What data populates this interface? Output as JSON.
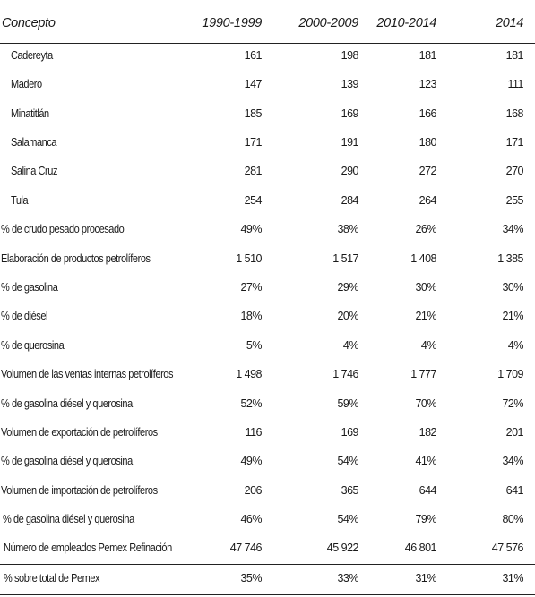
{
  "table": {
    "headers": {
      "concept": "Concepto",
      "col1": "1990-1999",
      "col2": "2000-2009",
      "col3": "2010-2014",
      "col4": "2014"
    },
    "rows": [
      {
        "label": "Cadereyta",
        "values": [
          "161",
          "198",
          "181",
          "181"
        ]
      },
      {
        "label": "Madero",
        "values": [
          "147",
          "139",
          "123",
          "111"
        ]
      },
      {
        "label": "Minatitlán",
        "values": [
          "185",
          "169",
          "166",
          "168"
        ]
      },
      {
        "label": "Salamanca",
        "values": [
          "171",
          "191",
          "180",
          "171"
        ]
      },
      {
        "label": "Salina Cruz",
        "values": [
          "281",
          "290",
          "272",
          "270"
        ]
      },
      {
        "label": "Tula",
        "values": [
          "254",
          "284",
          "264",
          "255"
        ]
      },
      {
        "label": "% de crudo pesado procesado",
        "values": [
          "49%",
          "38%",
          "26%",
          "34%"
        ]
      },
      {
        "label": "Elaboración de productos petrolíferos",
        "values": [
          "1 510",
          "1 517",
          "1 408",
          "1 385"
        ]
      },
      {
        "label": "% de gasolina",
        "values": [
          "27%",
          "29%",
          "30%",
          "30%"
        ]
      },
      {
        "label": "% de diésel",
        "values": [
          "18%",
          "20%",
          "21%",
          "21%"
        ]
      },
      {
        "label": "% de querosina",
        "values": [
          "5%",
          "4%",
          "4%",
          "4%"
        ]
      },
      {
        "label": "Volumen de las ventas internas petrolíferos",
        "values": [
          "1 498",
          "1 746",
          "1 777",
          "1 709"
        ]
      },
      {
        "label": "% de gasolina  diésel y querosina",
        "values": [
          "52%",
          "59%",
          "70%",
          "72%"
        ]
      },
      {
        "label": "Volumen de exportación de petrolíferos",
        "values": [
          "116",
          "169",
          "182",
          "201"
        ]
      },
      {
        "label": "% de gasolina  diésel y querosina",
        "values": [
          "49%",
          "54%",
          "41%",
          "34%"
        ]
      },
      {
        "label": "Volumen de importación de petrolíferos",
        "values": [
          "206",
          "365",
          "644",
          "641"
        ]
      },
      {
        "label": "% de gasolina  diésel y querosina",
        "values": [
          "46%",
          "54%",
          "79%",
          "80%"
        ]
      },
      {
        "label": "Número de empleados Pemex Refinación",
        "values": [
          "47 746",
          "45 922",
          "46 801",
          "47 576"
        ]
      },
      {
        "label": "% sobre total de Pemex",
        "values": [
          "35%",
          "33%",
          "31%",
          "31%"
        ]
      }
    ]
  }
}
